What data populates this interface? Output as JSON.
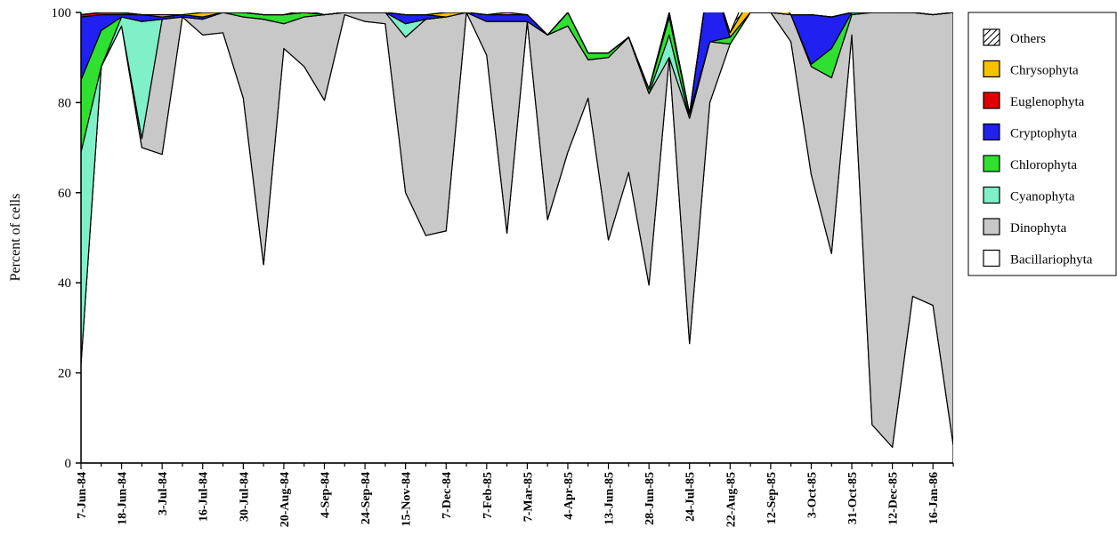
{
  "chart_data": {
    "type": "area",
    "stacked": true,
    "ylabel": "Percent of cells",
    "xlabel": "",
    "ylim": [
      0,
      100
    ],
    "yticks": [
      0,
      20,
      40,
      60,
      80,
      100
    ],
    "grid": false,
    "legend_position": "right",
    "x_tick_labels": [
      "7-Jun-84",
      "18-Jun-84",
      "3-Jul-84",
      "16-Jul-84",
      "30-Jul-84",
      "20-Aug-84",
      "4-Sep-84",
      "24-Sep-84",
      "15-Nov-84",
      "7-Dec-84",
      "7-Feb-85",
      "7-Mar-85",
      "4-Apr-85",
      "13-Jun-85",
      "28-Jun-85",
      "24-Jul-85",
      "22-Aug-85",
      "12-Sep-85",
      "3-Oct-85",
      "31-Oct-85",
      "12-Dec-85",
      "16-Jan-86"
    ],
    "sample_count": 44,
    "series": [
      {
        "name": "Bacillariophyta",
        "color": "#ffffff",
        "values": [
          22,
          88,
          97,
          70,
          68.5,
          99,
          95,
          95.5,
          81,
          44,
          92,
          88,
          80.5,
          99.5,
          98,
          97.5,
          60,
          50.5,
          51.5,
          100,
          90.5,
          51,
          98,
          54,
          69,
          81,
          49.5,
          64.5,
          39.5,
          90,
          26.5,
          80,
          93,
          100,
          100,
          93.5,
          64,
          46.5,
          95,
          8.5,
          3.5,
          37,
          35,
          4
        ]
      },
      {
        "name": "Dinophyta",
        "color": "#c8c8c8",
        "values": [
          0,
          0,
          0,
          2,
          30,
          0,
          3.5,
          4.5,
          18,
          54.5,
          5.5,
          11,
          19,
          0.5,
          2,
          2.5,
          34.5,
          48,
          47.5,
          0,
          7.5,
          47,
          0,
          41,
          28,
          8.5,
          40.5,
          30,
          42.5,
          0,
          50,
          13.5,
          0,
          0,
          0,
          6,
          24,
          39,
          4.5,
          91.5,
          96.5,
          63,
          64.5,
          96
        ]
      },
      {
        "name": "Cyanophyta",
        "color": "#80f0c8",
        "values": [
          47,
          0,
          2,
          26,
          0,
          0,
          0,
          0,
          0,
          0,
          0,
          0,
          0,
          0,
          0,
          0,
          3,
          0,
          0,
          0,
          0,
          0,
          0,
          0,
          0,
          0,
          0,
          0,
          0,
          5,
          0,
          0,
          0,
          0,
          0,
          0,
          0,
          0,
          0,
          0,
          0,
          0,
          0,
          0
        ]
      },
      {
        "name": "Chlorophyta",
        "color": "#30e030",
        "values": [
          16,
          8,
          0,
          0,
          0,
          0,
          0,
          0,
          1,
          1,
          2,
          1,
          0,
          0,
          0,
          0,
          0,
          0,
          0,
          0,
          0,
          0,
          0,
          0,
          3,
          1.5,
          1,
          0,
          1,
          4,
          1,
          0,
          1.5,
          0,
          0,
          0,
          0.5,
          6.5,
          0.5,
          0,
          0,
          0,
          0,
          0
        ]
      },
      {
        "name": "Cryptophyta",
        "color": "#2020f0",
        "values": [
          14,
          3.5,
          0.5,
          1.5,
          0.5,
          0.5,
          0.5,
          0,
          0,
          0,
          0,
          0,
          0,
          0,
          0,
          0,
          2,
          1,
          0,
          0,
          1.5,
          1.5,
          1.5,
          0,
          0,
          0,
          0,
          0,
          0,
          1,
          0,
          16,
          0,
          0,
          0,
          0,
          11,
          7,
          0,
          0,
          0,
          0,
          0,
          0
        ]
      },
      {
        "name": "Euglenophyta",
        "color": "#e00000",
        "values": [
          0.5,
          0.5,
          0.5,
          0,
          0,
          0,
          0,
          0,
          0,
          0,
          0,
          0,
          0,
          0,
          0,
          0,
          0,
          0,
          0,
          0,
          0,
          0,
          0,
          0,
          0,
          0,
          0,
          0,
          0,
          0,
          0,
          0,
          0,
          0,
          0,
          0,
          0,
          0,
          0,
          0,
          0,
          0,
          0,
          0
        ]
      },
      {
        "name": "Chrysophyta",
        "color": "#f8c000",
        "values": [
          0,
          0,
          0,
          0,
          0.5,
          0,
          1,
          0,
          0,
          0,
          0,
          0.5,
          0,
          0,
          0,
          0,
          0,
          0,
          1,
          0,
          0,
          0.5,
          0,
          0,
          0,
          0,
          0,
          0,
          0,
          0,
          0,
          0,
          1,
          3,
          4.5,
          0,
          0,
          0,
          0,
          1,
          0,
          0,
          0,
          0
        ]
      },
      {
        "name": "Others",
        "color": "hatch",
        "values": [
          0,
          0,
          0,
          0,
          0,
          0,
          0,
          0,
          0,
          0,
          0,
          0,
          0,
          0,
          0,
          0,
          0,
          0,
          0,
          0,
          0,
          0,
          0,
          0,
          0,
          0,
          0,
          0,
          0,
          0,
          0,
          0,
          0,
          3,
          0,
          0,
          0,
          0,
          0,
          0,
          0,
          0,
          0,
          0
        ]
      }
    ],
    "legend_order": [
      "Others",
      "Chrysophyta",
      "Euglenophyta",
      "Cryptophyta",
      "Chlorophyta",
      "Cyanophyta",
      "Dinophyta",
      "Bacillariophyta"
    ]
  }
}
